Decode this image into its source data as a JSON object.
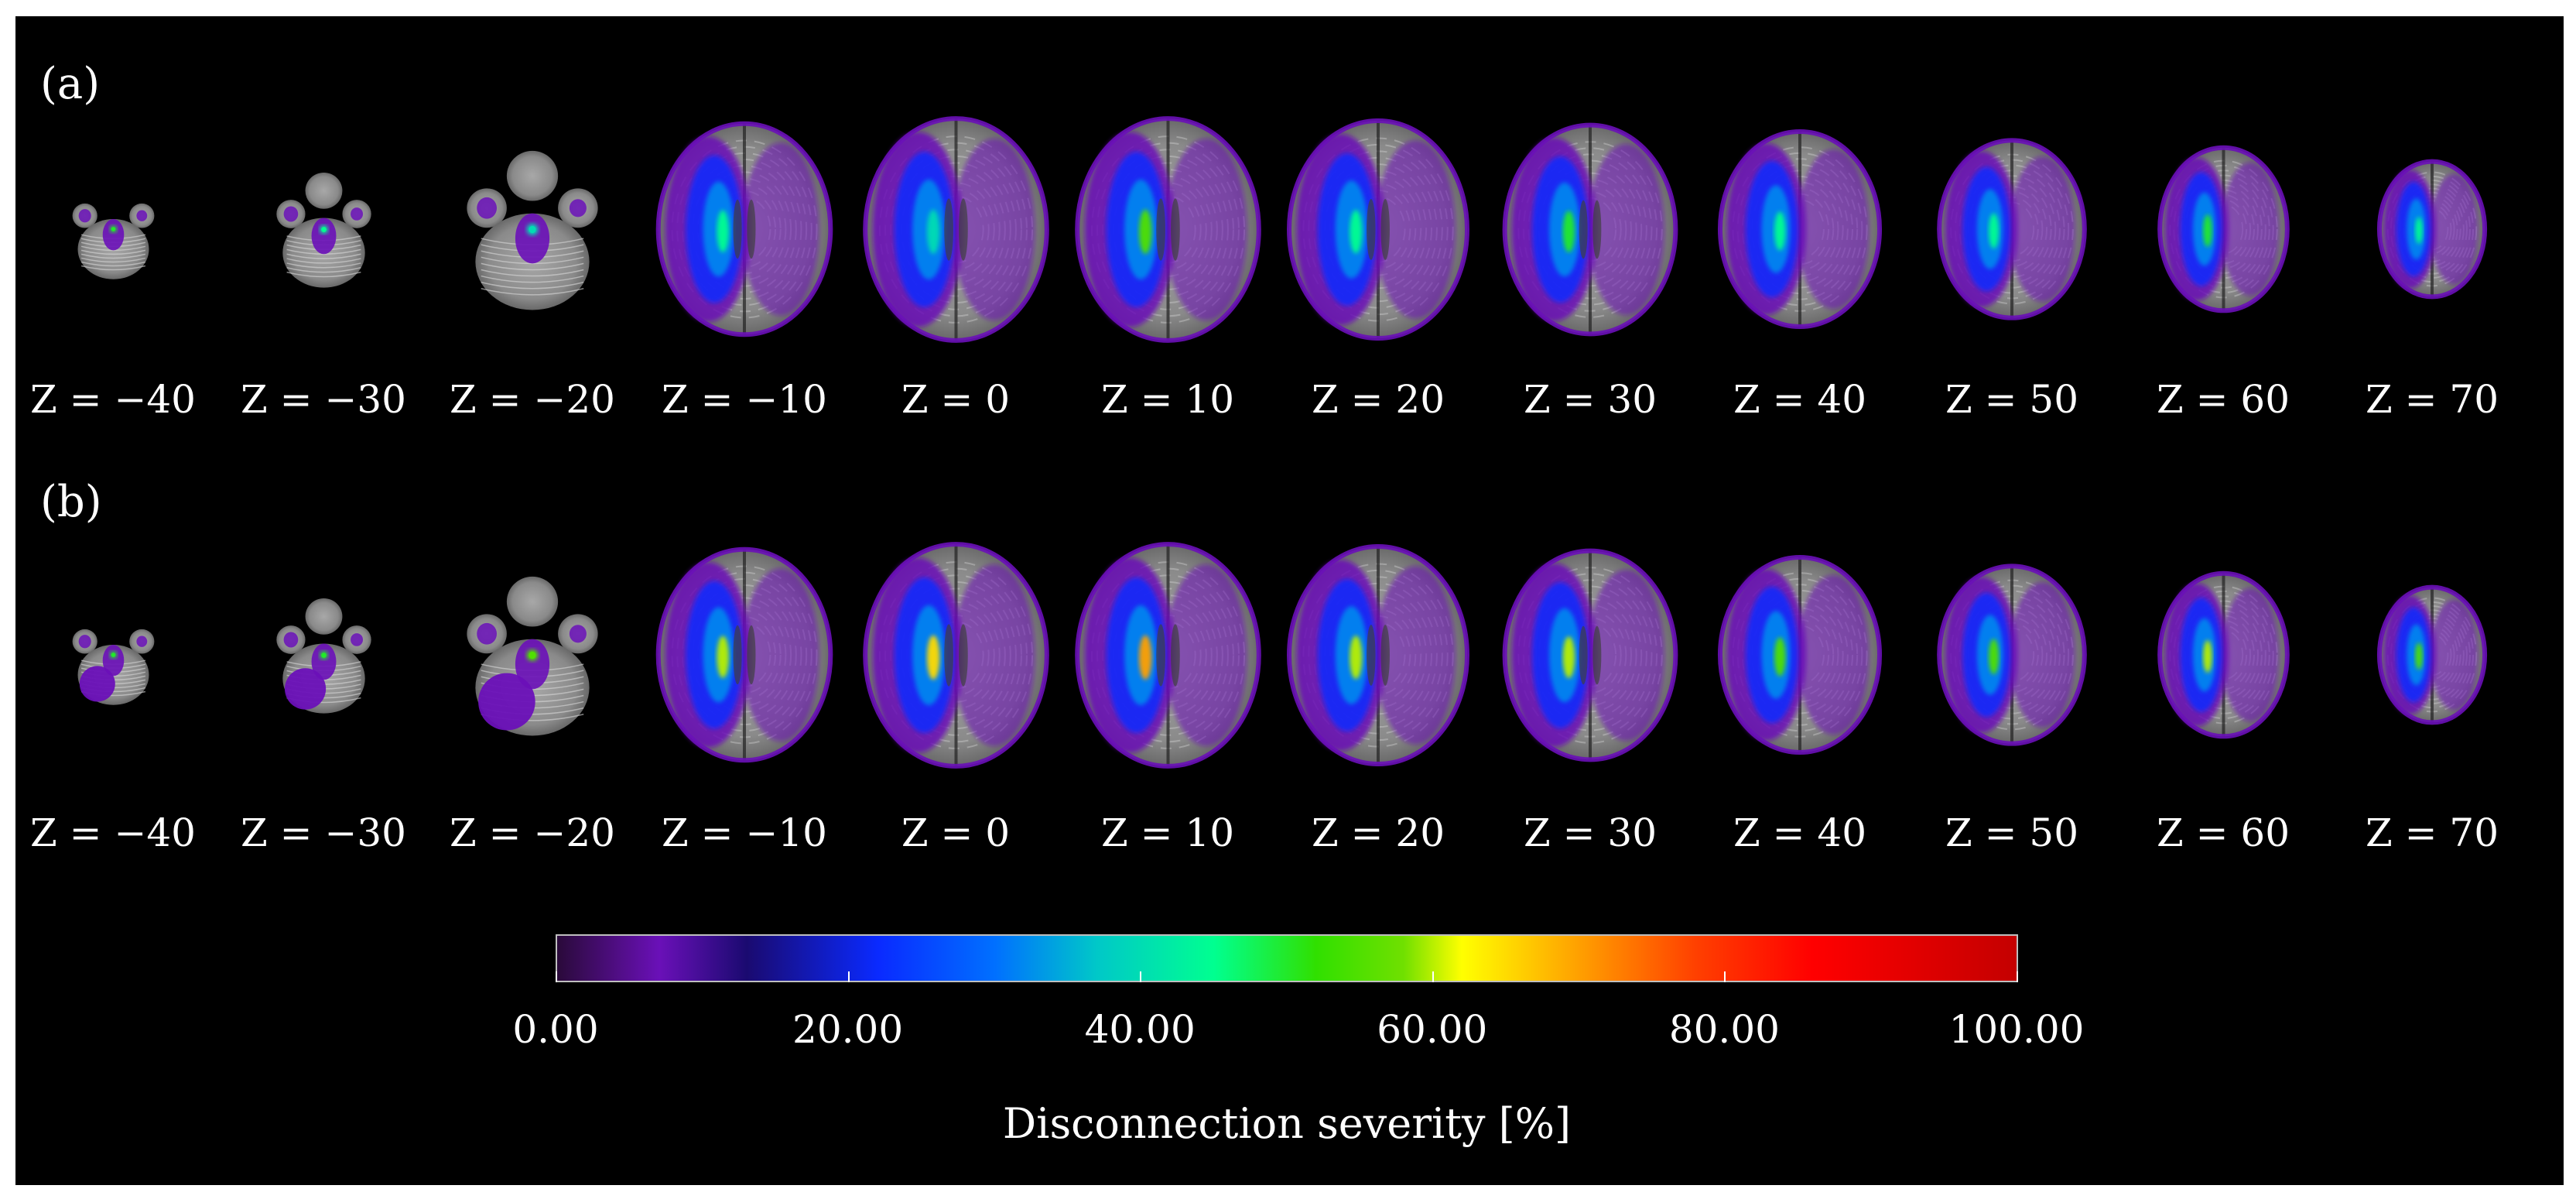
{
  "panels": [
    {
      "label": "(a)",
      "slices": [
        {
          "z_label": "Z = −40",
          "scale": 0.45,
          "peak": 0.5,
          "cerebellum_blob": false
        },
        {
          "z_label": "Z = −30",
          "scale": 0.52,
          "peak": 0.45,
          "cerebellum_blob": false
        },
        {
          "z_label": "Z = −20",
          "scale": 0.72,
          "peak": 0.4,
          "cerebellum_blob": false
        },
        {
          "z_label": "Z = −10",
          "scale": 0.95,
          "peak": 0.45,
          "cerebellum_blob": false
        },
        {
          "z_label": "Z = 0",
          "scale": 1.0,
          "peak": 0.4,
          "cerebellum_blob": false
        },
        {
          "z_label": "Z = 10",
          "scale": 1.0,
          "peak": 0.55,
          "cerebellum_blob": false
        },
        {
          "z_label": "Z = 20",
          "scale": 0.98,
          "peak": 0.45,
          "cerebellum_blob": false
        },
        {
          "z_label": "Z = 30",
          "scale": 0.94,
          "peak": 0.5,
          "cerebellum_blob": false
        },
        {
          "z_label": "Z = 40",
          "scale": 0.88,
          "peak": 0.45,
          "cerebellum_blob": false
        },
        {
          "z_label": "Z = 50",
          "scale": 0.8,
          "peak": 0.45,
          "cerebellum_blob": false
        },
        {
          "z_label": "Z = 60",
          "scale": 0.7,
          "peak": 0.5,
          "cerebellum_blob": false
        },
        {
          "z_label": "Z = 70",
          "scale": 0.58,
          "peak": 0.45,
          "cerebellum_blob": false
        }
      ]
    },
    {
      "label": "(b)",
      "slices": [
        {
          "z_label": "Z = −40",
          "scale": 0.45,
          "peak": 0.5,
          "cerebellum_blob": true
        },
        {
          "z_label": "Z = −30",
          "scale": 0.52,
          "peak": 0.5,
          "cerebellum_blob": true
        },
        {
          "z_label": "Z = −20",
          "scale": 0.72,
          "peak": 0.55,
          "cerebellum_blob": true
        },
        {
          "z_label": "Z = −10",
          "scale": 0.95,
          "peak": 0.6,
          "cerebellum_blob": false
        },
        {
          "z_label": "Z = 0",
          "scale": 1.0,
          "peak": 0.65,
          "cerebellum_blob": false
        },
        {
          "z_label": "Z = 10",
          "scale": 1.0,
          "peak": 0.7,
          "cerebellum_blob": false
        },
        {
          "z_label": "Z = 20",
          "scale": 0.98,
          "peak": 0.6,
          "cerebellum_blob": false
        },
        {
          "z_label": "Z = 30",
          "scale": 0.94,
          "peak": 0.6,
          "cerebellum_blob": false
        },
        {
          "z_label": "Z = 40",
          "scale": 0.88,
          "peak": 0.55,
          "cerebellum_blob": false
        },
        {
          "z_label": "Z = 50",
          "scale": 0.8,
          "peak": 0.55,
          "cerebellum_blob": false
        },
        {
          "z_label": "Z = 60",
          "scale": 0.7,
          "peak": 0.6,
          "cerebellum_blob": false
        },
        {
          "z_label": "Z = 70",
          "scale": 0.58,
          "peak": 0.55,
          "cerebellum_blob": false
        }
      ]
    }
  ],
  "colorbar": {
    "title": "Disconnection severity [%]",
    "tick_labels": [
      "0.00",
      "20.00",
      "40.00",
      "60.00",
      "80.00",
      "100.00"
    ],
    "min": 0,
    "max": 100,
    "colormap": "rainbow",
    "color_stops": [
      {
        "value": 0,
        "color": "#2a0a3a"
      },
      {
        "value": 7,
        "color": "#6a10b8"
      },
      {
        "value": 13,
        "color": "#1a0a70"
      },
      {
        "value": 22,
        "color": "#0a2aff"
      },
      {
        "value": 30,
        "color": "#0070ff"
      },
      {
        "value": 37,
        "color": "#00c8c8"
      },
      {
        "value": 45,
        "color": "#00ff90"
      },
      {
        "value": 52,
        "color": "#30e000"
      },
      {
        "value": 58,
        "color": "#70e000"
      },
      {
        "value": 62,
        "color": "#ffff00"
      },
      {
        "value": 70,
        "color": "#ffa000"
      },
      {
        "value": 78,
        "color": "#ff4000"
      },
      {
        "value": 86,
        "color": "#ff0000"
      },
      {
        "value": 100,
        "color": "#c40000"
      }
    ]
  },
  "colors": {
    "background": "#000000",
    "text": "#ffffff"
  }
}
